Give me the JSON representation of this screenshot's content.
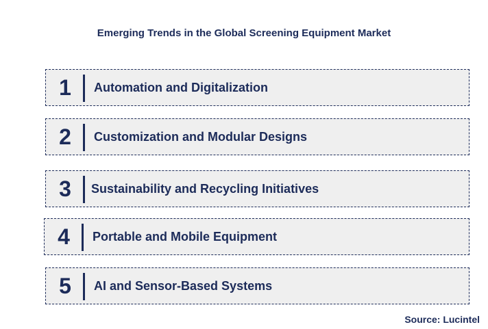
{
  "title": "Emerging Trends in the Global Screening Equipment Market",
  "items": [
    {
      "number": "1",
      "label": "Automation and Digitalization"
    },
    {
      "number": "2",
      "label": "Customization and Modular Designs"
    },
    {
      "number": "3",
      "label": "Sustainability and Recycling Initiatives"
    },
    {
      "number": "4",
      "label": "Portable and Mobile Equipment"
    },
    {
      "number": "5",
      "label": "AI and Sensor-Based Systems"
    }
  ],
  "source": "Source: Lucintel",
  "colors": {
    "text": "#1c2b59",
    "box_fill": "#efefef",
    "border": "#1c2b59"
  }
}
